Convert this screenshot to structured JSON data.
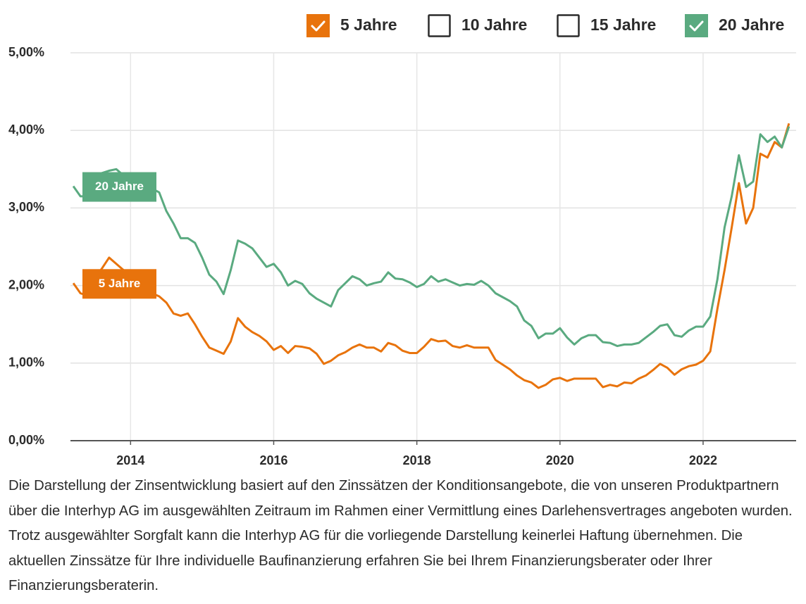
{
  "chart_data": {
    "type": "line",
    "legend": [
      {
        "label": "5 Jahre",
        "checked": true,
        "color": "#e8730c"
      },
      {
        "label": "10 Jahre",
        "checked": false
      },
      {
        "label": "15 Jahre",
        "checked": false
      },
      {
        "label": "20 Jahre",
        "checked": true,
        "color": "#5aaa80"
      }
    ],
    "x": [
      2013.2,
      2013.3,
      2013.4,
      2013.5,
      2013.6,
      2013.7,
      2013.8,
      2013.9,
      2014.0,
      2014.1,
      2014.2,
      2014.3,
      2014.4,
      2014.5,
      2014.6,
      2014.7,
      2014.8,
      2014.9,
      2015.0,
      2015.1,
      2015.2,
      2015.3,
      2015.4,
      2015.5,
      2015.6,
      2015.7,
      2015.8,
      2015.9,
      2016.0,
      2016.1,
      2016.2,
      2016.3,
      2016.4,
      2016.5,
      2016.6,
      2016.7,
      2016.8,
      2016.9,
      2017.0,
      2017.1,
      2017.2,
      2017.3,
      2017.4,
      2017.5,
      2017.6,
      2017.7,
      2017.8,
      2017.9,
      2018.0,
      2018.1,
      2018.2,
      2018.3,
      2018.4,
      2018.5,
      2018.6,
      2018.7,
      2018.8,
      2018.9,
      2019.0,
      2019.1,
      2019.2,
      2019.3,
      2019.4,
      2019.5,
      2019.6,
      2019.7,
      2019.8,
      2019.9,
      2020.0,
      2020.1,
      2020.2,
      2020.3,
      2020.4,
      2020.5,
      2020.6,
      2020.7,
      2020.8,
      2020.9,
      2021.0,
      2021.1,
      2021.2,
      2021.3,
      2021.4,
      2021.5,
      2021.6,
      2021.7,
      2021.8,
      2021.9,
      2022.0,
      2022.1,
      2022.2,
      2022.3,
      2022.4,
      2022.5,
      2022.6,
      2022.7,
      2022.8,
      2022.9,
      2023.0,
      2023.1,
      2023.2
    ],
    "series": [
      {
        "name": "5 Jahre",
        "color": "#e8730c",
        "values": [
          2.03,
          1.9,
          1.87,
          2.1,
          2.22,
          2.36,
          2.28,
          2.2,
          2.05,
          1.98,
          1.95,
          1.9,
          1.86,
          1.78,
          1.64,
          1.61,
          1.64,
          1.5,
          1.34,
          1.2,
          1.16,
          1.12,
          1.28,
          1.58,
          1.47,
          1.4,
          1.35,
          1.28,
          1.17,
          1.22,
          1.13,
          1.22,
          1.21,
          1.19,
          1.12,
          0.99,
          1.03,
          1.1,
          1.14,
          1.2,
          1.24,
          1.2,
          1.2,
          1.15,
          1.26,
          1.23,
          1.16,
          1.13,
          1.13,
          1.21,
          1.31,
          1.28,
          1.29,
          1.22,
          1.2,
          1.23,
          1.2,
          1.2,
          1.2,
          1.04,
          0.98,
          0.92,
          0.84,
          0.78,
          0.75,
          0.68,
          0.72,
          0.79,
          0.81,
          0.77,
          0.8,
          0.8,
          0.8,
          0.8,
          0.69,
          0.72,
          0.7,
          0.75,
          0.74,
          0.8,
          0.84,
          0.91,
          0.99,
          0.94,
          0.85,
          0.92,
          0.96,
          0.98,
          1.03,
          1.15,
          1.7,
          2.2,
          2.75,
          3.32,
          2.8,
          3.0,
          3.7,
          3.65,
          3.85,
          3.78,
          4.09
        ]
      },
      {
        "name": "20 Jahre",
        "color": "#5aaa80",
        "values": [
          3.28,
          3.15,
          3.15,
          3.35,
          3.45,
          3.48,
          3.5,
          3.42,
          3.35,
          3.3,
          3.28,
          3.25,
          3.2,
          2.96,
          2.8,
          2.61,
          2.61,
          2.55,
          2.36,
          2.14,
          2.05,
          1.89,
          2.2,
          2.58,
          2.54,
          2.48,
          2.36,
          2.24,
          2.28,
          2.17,
          2.0,
          2.06,
          2.02,
          1.9,
          1.83,
          1.78,
          1.73,
          1.94,
          2.03,
          2.12,
          2.08,
          2.0,
          2.03,
          2.05,
          2.17,
          2.09,
          2.08,
          2.04,
          1.98,
          2.02,
          2.12,
          2.05,
          2.08,
          2.04,
          2.0,
          2.02,
          2.01,
          2.06,
          2.0,
          1.9,
          1.85,
          1.8,
          1.73,
          1.55,
          1.48,
          1.32,
          1.38,
          1.38,
          1.45,
          1.33,
          1.24,
          1.32,
          1.36,
          1.36,
          1.27,
          1.26,
          1.22,
          1.24,
          1.24,
          1.26,
          1.33,
          1.4,
          1.48,
          1.5,
          1.36,
          1.34,
          1.42,
          1.47,
          1.47,
          1.6,
          2.08,
          2.75,
          3.15,
          3.68,
          3.27,
          3.34,
          3.95,
          3.85,
          3.92,
          3.78,
          4.05
        ]
      }
    ],
    "xlim": [
      2013.16,
      2023.3
    ],
    "xticks": [
      2014,
      2016,
      2018,
      2020,
      2022
    ],
    "ylim": [
      0,
      5
    ],
    "yticks": [
      {
        "value": 0,
        "label": "0,00%"
      },
      {
        "value": 1,
        "label": "1,00%"
      },
      {
        "value": 2,
        "label": "2,00%"
      },
      {
        "value": 3,
        "label": "3,00%"
      },
      {
        "value": 4,
        "label": "4,00%"
      },
      {
        "value": 5,
        "label": "5,00%"
      }
    ],
    "grid": true,
    "note": "Die Darstellung der Zinsentwicklung basiert auf den Zinssätzen der Konditionsangebote, die von unseren Produktpartnern über die Interhyp AG im ausgewählten Zeitraum im Rahmen einer Vermittlung eines Darlehensvertrages angeboten wurden. Trotz ausgewählter Sorgfalt kann die Interhyp AG für die vorliegende Darstellung keinerlei Haftung übernehmen. Die aktuellen Zinssätze für Ihre individuelle Baufinanzierung erfahren Sie bei Ihrem Finanzierungsberater oder Ihrer Finanzierungsberaterin."
  }
}
